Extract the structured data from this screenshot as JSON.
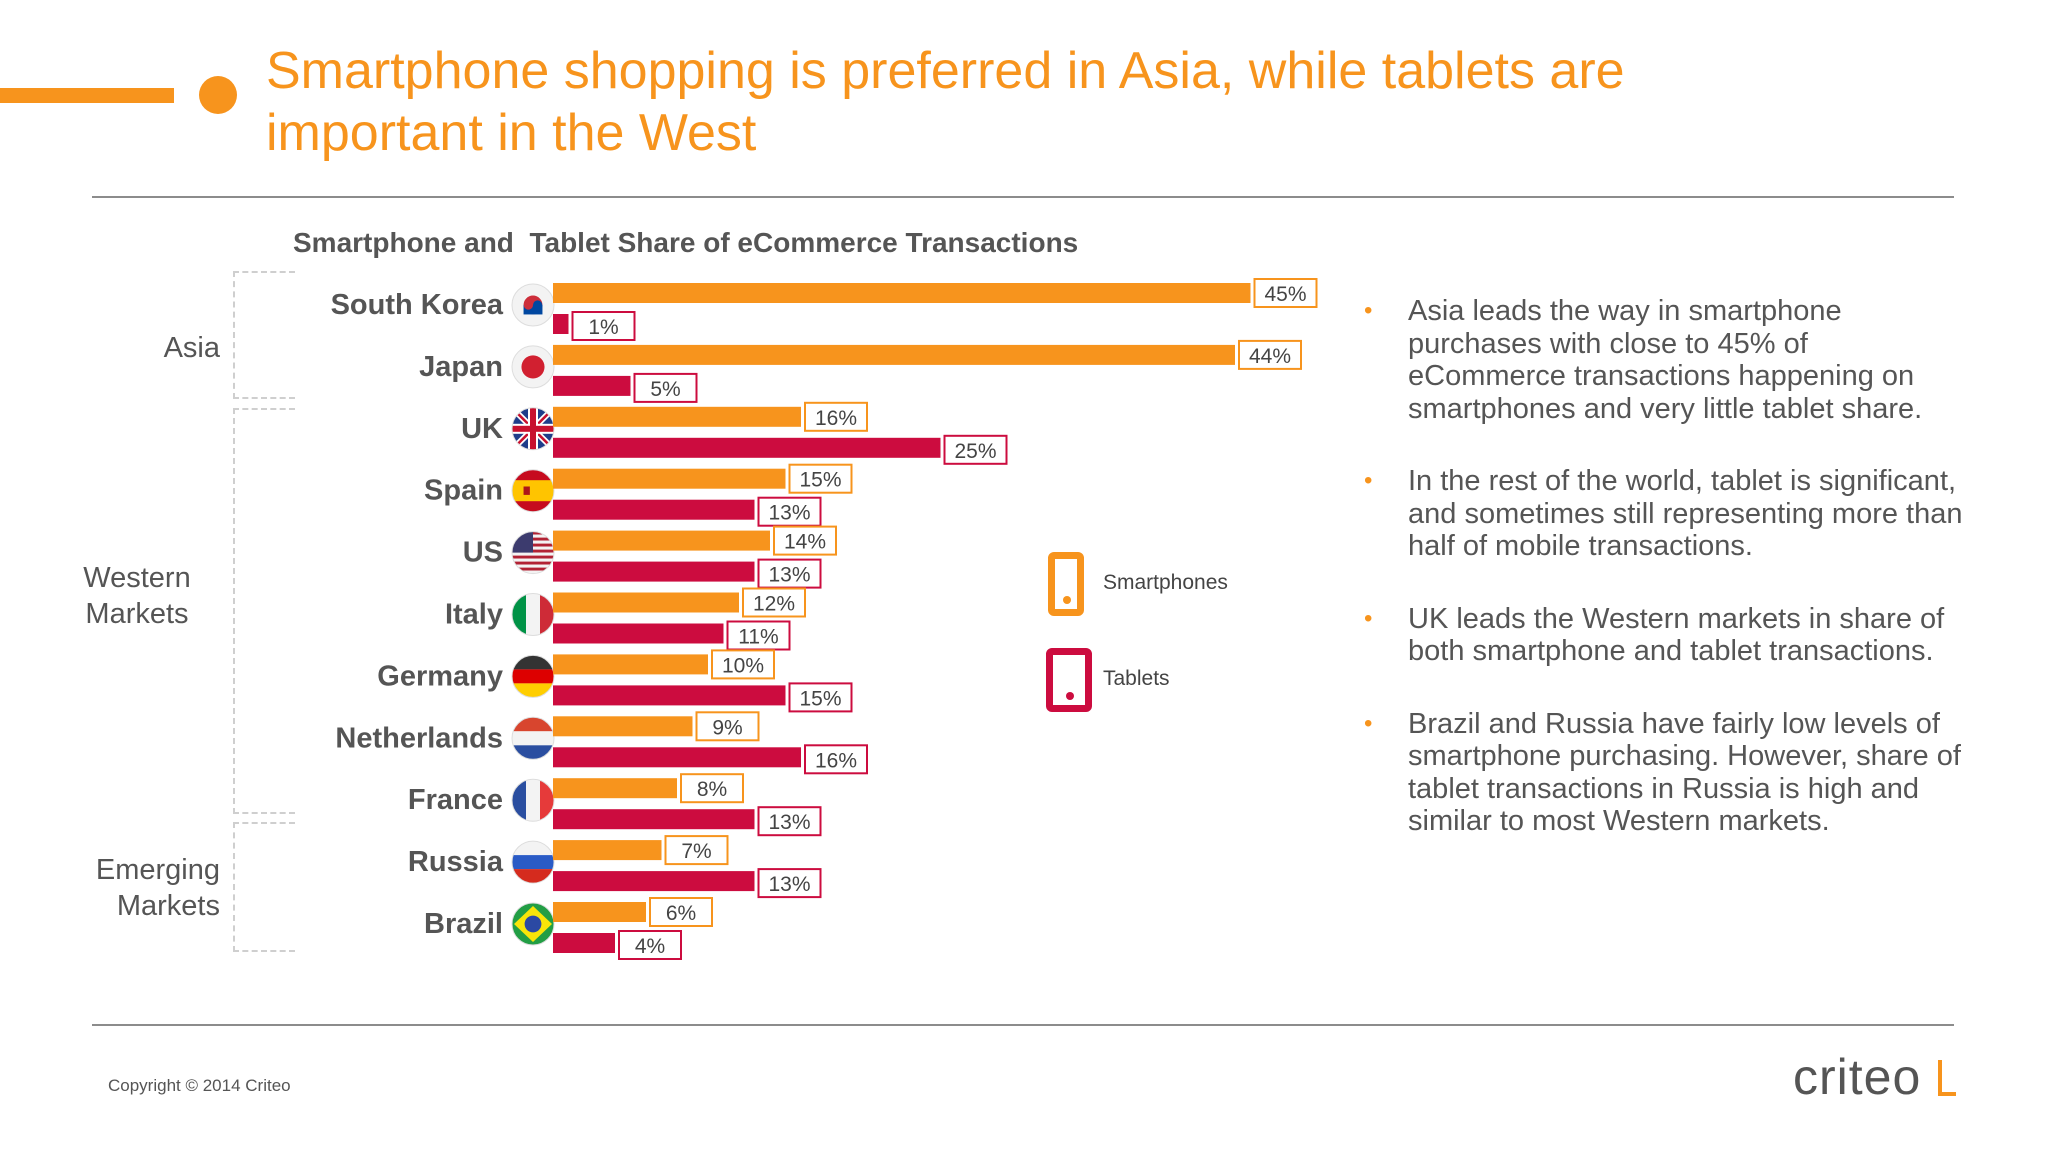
{
  "header": {
    "title": "Smartphone shopping is preferred in Asia, while tablets are important in the West"
  },
  "chart_data": {
    "type": "bar",
    "title": "Smartphone and  Tablet Share of eCommerce Transactions",
    "categories": [
      "South Korea",
      "Japan",
      "UK",
      "Spain",
      "US",
      "Italy",
      "Germany",
      "Netherlands",
      "France",
      "Russia",
      "Brazil"
    ],
    "series": [
      {
        "name": "Smartphones",
        "color": "#f7941d",
        "values": [
          45,
          44,
          16,
          15,
          14,
          12,
          10,
          9,
          8,
          7,
          6
        ]
      },
      {
        "name": "Tablets",
        "color": "#cc0c3f",
        "values": [
          1,
          5,
          25,
          13,
          13,
          11,
          15,
          16,
          13,
          13,
          4
        ]
      }
    ],
    "value_suffix": "%",
    "orientation": "horizontal",
    "groups": [
      {
        "label": "Asia",
        "categories": [
          "South Korea",
          "Japan"
        ]
      },
      {
        "label": "Western Markets",
        "categories": [
          "UK",
          "Spain",
          "US",
          "Italy",
          "Germany",
          "Netherlands",
          "France"
        ]
      },
      {
        "label": "Emerging Markets",
        "categories": [
          "Russia",
          "Brazil"
        ]
      }
    ],
    "flags": [
      "flag-south-korea-icon",
      "flag-japan-icon",
      "flag-uk-icon",
      "flag-spain-icon",
      "flag-us-icon",
      "flag-italy-icon",
      "flag-germany-icon",
      "flag-netherlands-icon",
      "flag-france-icon",
      "flag-russia-icon",
      "flag-brazil-icon"
    ],
    "legend": {
      "placement": "right",
      "items": [
        "Smartphones",
        "Tablets"
      ],
      "icons": [
        "smartphone-icon",
        "tablet-icon"
      ]
    },
    "grid": false
  },
  "groups_text": {
    "asia": "Asia",
    "western_1": "Western",
    "western_2": "Markets",
    "emerging_1": "Emerging",
    "emerging_2": "Markets"
  },
  "bullets": [
    "Asia leads the way in smartphone purchases with close to 45% of eCommerce transactions happening on smartphones and very little tablet share.",
    "In the rest of the world, tablet is significant, and sometimes still representing more than half of mobile transactions.",
    "UK leads the Western markets in share of both smartphone and tablet transactions.",
    "Brazil and Russia have fairly low levels of smartphone purchasing. However, share of tablet transactions in Russia is high and similar to most Western markets."
  ],
  "footer": {
    "copyright": "Copyright © 2014 Criteo",
    "logo": "criteo"
  },
  "colors": {
    "accent": "#f7941d",
    "tablet": "#cc0c3f"
  }
}
